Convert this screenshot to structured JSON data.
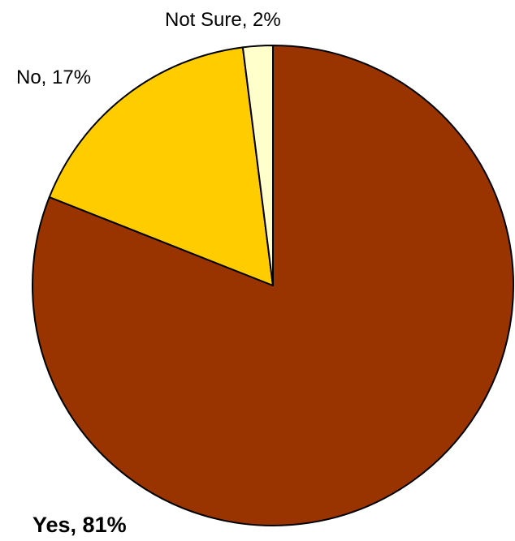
{
  "chart_data": {
    "type": "pie",
    "title": "",
    "slices": [
      {
        "label": "Yes",
        "value": 81,
        "display_label": "Yes, 81%",
        "color": "#993300",
        "emphasis": "bold"
      },
      {
        "label": "No",
        "value": 17,
        "display_label": "No, 17%",
        "color": "#FFCC00",
        "emphasis": "normal"
      },
      {
        "label": "Not Sure",
        "value": 2,
        "display_label": "Not Sure, 2%",
        "color": "#FFFFCC",
        "emphasis": "normal"
      }
    ],
    "start_angle_deg": 0,
    "direction": "clockwise",
    "border_color": "#000000",
    "legend": "none"
  }
}
